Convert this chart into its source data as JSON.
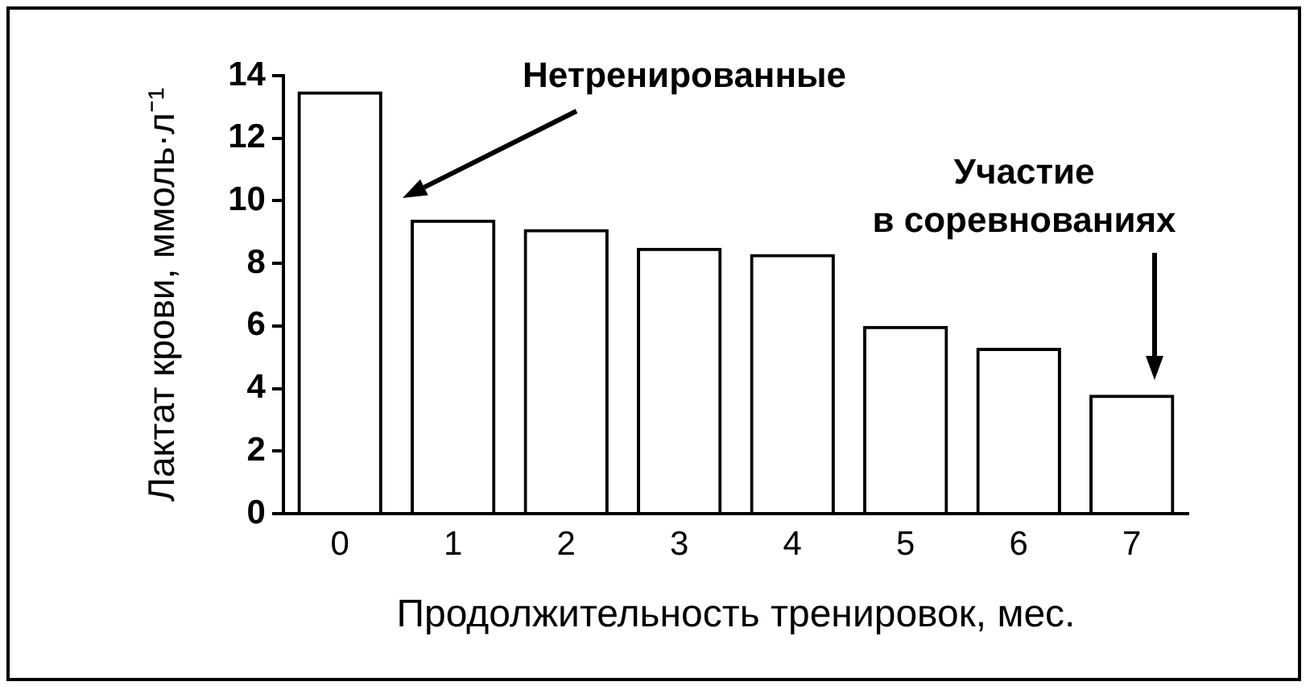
{
  "chart_data": {
    "type": "bar",
    "xlabel": "Продолжительность тренировок, мес.",
    "ylabel": "Лактат крови, ммоль·л⁻¹",
    "categories": [
      "0",
      "1",
      "2",
      "3",
      "4",
      "5",
      "6",
      "7"
    ],
    "values": [
      13.5,
      9.4,
      9.1,
      8.5,
      8.3,
      6.0,
      5.3,
      3.8
    ],
    "color": "#000000",
    "ylim": [
      0,
      14
    ],
    "yticks": [
      0,
      2,
      4,
      6,
      8,
      10,
      12,
      14
    ],
    "grid": false,
    "legend": false,
    "annotations": [
      "Нетренированные",
      "Участие\nв соревнованиях"
    ]
  }
}
